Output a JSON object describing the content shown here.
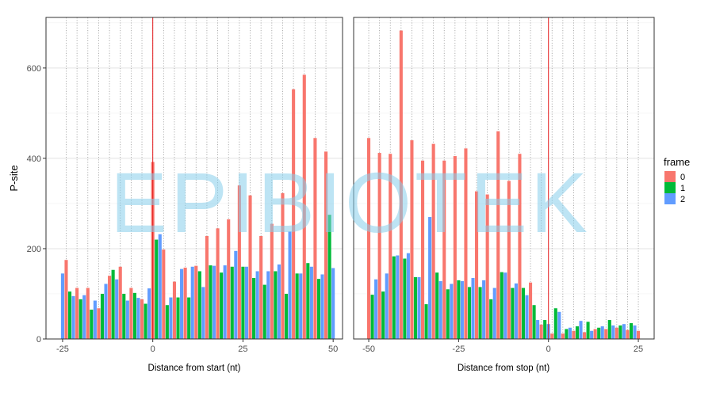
{
  "watermark": "EPIBIOTEK",
  "colors": {
    "0": "#F8766D",
    "1": "#00BA38",
    "2": "#619CFF",
    "vline": "#E41A1C",
    "watermark": "#87CEEB"
  },
  "legend": {
    "title": "frame",
    "items": [
      "0",
      "1",
      "2"
    ],
    "placement": "right"
  },
  "chart_data": [
    {
      "type": "bar",
      "ylabel": "P-site",
      "xlabel": "Distance from start (nt)",
      "xlim": [
        -29.6,
        52.6
      ],
      "ylim": [
        0,
        712
      ],
      "xticks": [
        -25,
        0,
        25,
        50
      ],
      "yticks": [
        0,
        200,
        400,
        600
      ],
      "vline": 0,
      "frame_of_x0": 0,
      "x_start": -25,
      "values": [
        145,
        175,
        105,
        95,
        113,
        88,
        97,
        113,
        65,
        85,
        68,
        100,
        122,
        140,
        153,
        132,
        160,
        100,
        85,
        113,
        102,
        91,
        88,
        78,
        112,
        392,
        220,
        232,
        198,
        75,
        92,
        127,
        92,
        155,
        158,
        92,
        160,
        162,
        150,
        115,
        228,
        163,
        162,
        245,
        147,
        163,
        265,
        160,
        195,
        340,
        160,
        160,
        318,
        135,
        150,
        228,
        120,
        150,
        255,
        150,
        165,
        323,
        100,
        238,
        553,
        145,
        145,
        585,
        168,
        160,
        445,
        133,
        143,
        415,
        275,
        157
      ]
    },
    {
      "type": "bar",
      "ylabel": "",
      "xlabel": "Distance from stop (nt)",
      "xlim": [
        -54.2,
        29.4
      ],
      "ylim": [
        0,
        712
      ],
      "xticks": [
        -50,
        -25,
        0,
        25
      ],
      "yticks": [
        0,
        200,
        400,
        600
      ],
      "vline": 0,
      "frame_of_x0": 2,
      "x_start": -50,
      "values": [
        445,
        98,
        132,
        412,
        105,
        145,
        410,
        183,
        185,
        683,
        178,
        190,
        440,
        137,
        137,
        395,
        77,
        270,
        432,
        147,
        128,
        395,
        110,
        122,
        405,
        130,
        128,
        422,
        115,
        135,
        327,
        115,
        130,
        320,
        88,
        113,
        460,
        148,
        147,
        350,
        113,
        123,
        410,
        113,
        97,
        125,
        75,
        42,
        32,
        42,
        33,
        12,
        68,
        60,
        12,
        22,
        25,
        18,
        28,
        40,
        15,
        38,
        18,
        22,
        25,
        28,
        22,
        42,
        30,
        25,
        30,
        33,
        20,
        35,
        30,
        18
      ]
    }
  ]
}
